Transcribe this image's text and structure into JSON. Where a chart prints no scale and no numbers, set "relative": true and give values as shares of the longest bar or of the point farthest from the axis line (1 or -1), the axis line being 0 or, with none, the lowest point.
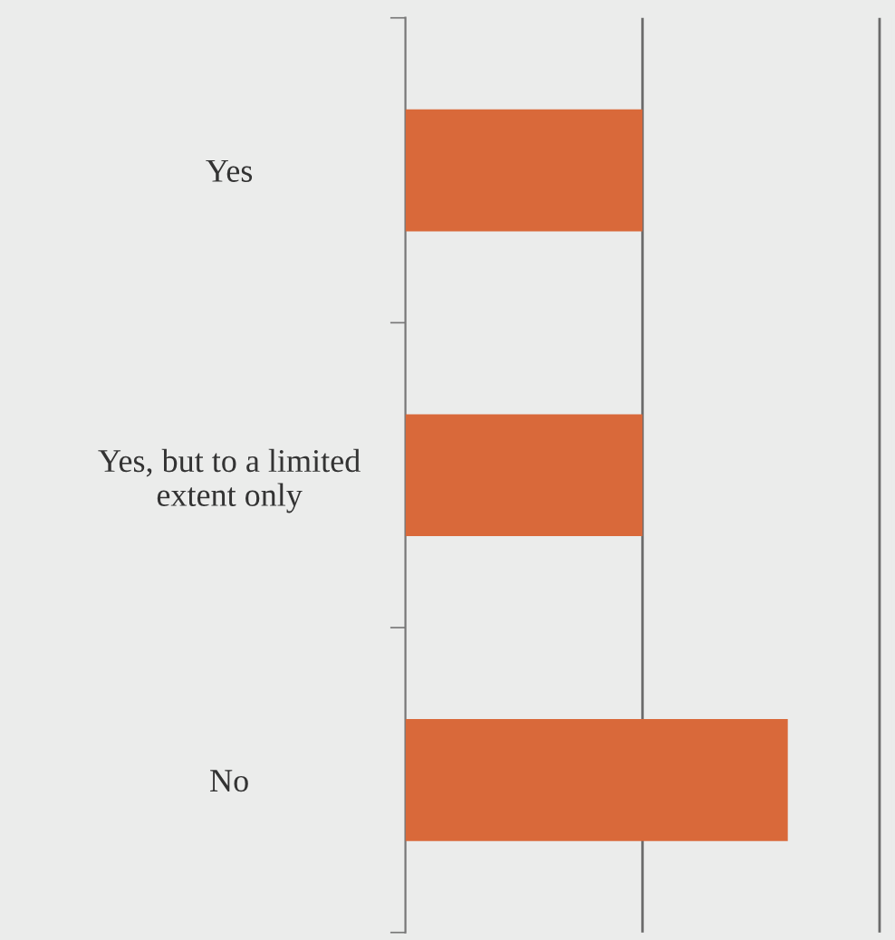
{
  "chart_data": {
    "type": "bar",
    "orientation": "horizontal",
    "relative": true,
    "categories": [
      "Yes",
      "Yes, but to a limited\nextent only",
      "No"
    ],
    "values": [
      0.62,
      0.62,
      1.0
    ],
    "color": "#d9693a",
    "ref_lines": [
      {
        "axis": "x",
        "value": 0.62,
        "color": "#6b6b6b"
      },
      {
        "axis": "x",
        "value": 1.24,
        "color": "#6b6b6b"
      }
    ]
  }
}
